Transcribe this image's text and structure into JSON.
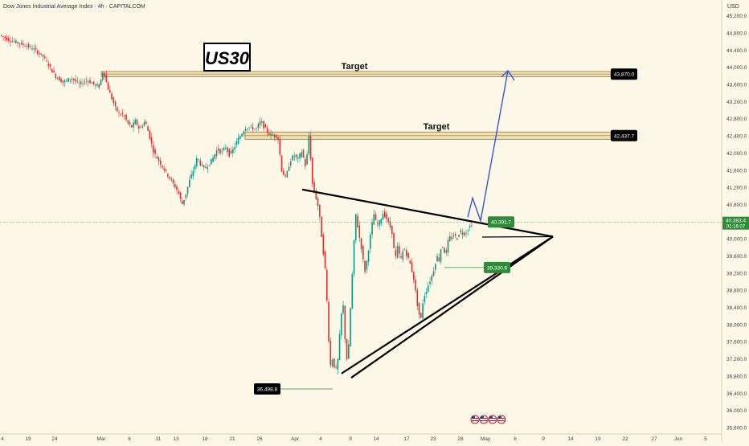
{
  "header": {
    "title": "Dow Jones Industrial Average Index · 4h · CAPITALCOM"
  },
  "currency": "USD",
  "badge": "US30",
  "colors": {
    "background": "#fdf7e7",
    "up": "#089981",
    "down": "#e0302b",
    "zone": "#f2e1b0",
    "projection": "#3355e6",
    "label_bg": "#000000",
    "current_price": "#2e8b3a"
  },
  "chart_data": {
    "type": "candlestick",
    "title": "Dow Jones Industrial Average Index · 4h · CAPITALCOM",
    "ylim": [
      35450,
      45380
    ],
    "y_ticks": [
      45200,
      44800,
      44400,
      44000,
      43600,
      43200,
      42800,
      42400,
      42000,
      41600,
      41200,
      40800,
      40400,
      40000,
      39600,
      39200,
      38800,
      38400,
      38000,
      37600,
      37200,
      36800,
      36400,
      36000,
      35600
    ],
    "y_tick_labels": [
      "45,200.0",
      "44,800.0",
      "44,400.0",
      "44,000.0",
      "43,600.0",
      "43,200.0",
      "42,800.0",
      "42,400.0",
      "42,000.0",
      "41,600.0",
      "41,200.0",
      "40,800.0",
      "40,400.0",
      "40,000.0",
      "39,600.0",
      "39,200.0",
      "38,800.0",
      "38,400.0",
      "38,000.0",
      "37,600.0",
      "37,200.0",
      "36,800.0",
      "36,400.0",
      "36,000.0",
      "35,600.0"
    ],
    "x_ticks": [
      "4",
      "19",
      "24",
      "Mar",
      "6",
      "11",
      "13",
      "18",
      "21",
      "26",
      "Apr",
      "4",
      "9",
      "14",
      "17",
      "23",
      "28",
      "May",
      "6",
      "9",
      "14",
      "19",
      "22",
      "27",
      "Jun",
      "5"
    ],
    "price_path": [
      [
        0,
        44760
      ],
      [
        6,
        44700
      ],
      [
        15,
        44620
      ],
      [
        25,
        44560
      ],
      [
        35,
        44500
      ],
      [
        45,
        44400
      ],
      [
        55,
        44250
      ],
      [
        62,
        44050
      ],
      [
        70,
        43800
      ],
      [
        80,
        43650
      ],
      [
        90,
        43750
      ],
      [
        100,
        43600
      ],
      [
        110,
        43700
      ],
      [
        118,
        43600
      ],
      [
        125,
        43550
      ],
      [
        130,
        43950
      ],
      [
        135,
        43550
      ],
      [
        140,
        43300
      ],
      [
        145,
        43050
      ],
      [
        150,
        42900
      ],
      [
        155,
        42900
      ],
      [
        160,
        42700
      ],
      [
        165,
        42600
      ],
      [
        170,
        42750
      ],
      [
        175,
        42550
      ],
      [
        182,
        42750
      ],
      [
        188,
        42350
      ],
      [
        193,
        42000
      ],
      [
        198,
        41850
      ],
      [
        203,
        41700
      ],
      [
        208,
        41550
      ],
      [
        213,
        41400
      ],
      [
        218,
        41250
      ],
      [
        223,
        41100
      ],
      [
        228,
        40800
      ],
      [
        232,
        41000
      ],
      [
        237,
        41350
      ],
      [
        242,
        41600
      ],
      [
        247,
        41900
      ],
      [
        252,
        41700
      ],
      [
        257,
        41650
      ],
      [
        262,
        41750
      ],
      [
        267,
        41900
      ],
      [
        272,
        42100
      ],
      [
        277,
        42000
      ],
      [
        282,
        42150
      ],
      [
        287,
        41950
      ],
      [
        292,
        42100
      ],
      [
        297,
        42300
      ],
      [
        302,
        42450
      ],
      [
        307,
        42600
      ],
      [
        313,
        42600
      ],
      [
        320,
        42550
      ],
      [
        326,
        42750
      ],
      [
        330,
        42600
      ],
      [
        336,
        42450
      ],
      [
        342,
        42400
      ],
      [
        347,
        42400
      ],
      [
        352,
        41600
      ],
      [
        357,
        41400
      ],
      [
        362,
        41800
      ],
      [
        367,
        41950
      ],
      [
        372,
        41850
      ],
      [
        377,
        42050
      ],
      [
        382,
        41650
      ],
      [
        386,
        42450
      ],
      [
        390,
        41300
      ],
      [
        394,
        41000
      ],
      [
        398,
        40700
      ],
      [
        403,
        39800
      ],
      [
        406,
        39300
      ],
      [
        409,
        38300
      ],
      [
        412,
        37000
      ],
      [
        415,
        37200
      ],
      [
        419,
        36900
      ],
      [
        422,
        37200
      ],
      [
        425,
        38000
      ],
      [
        428,
        38600
      ],
      [
        431,
        37600
      ],
      [
        434,
        37000
      ],
      [
        437,
        38200
      ],
      [
        441,
        39600
      ],
      [
        444,
        40600
      ],
      [
        448,
        40100
      ],
      [
        452,
        39700
      ],
      [
        455,
        39200
      ],
      [
        458,
        39500
      ],
      [
        461,
        39900
      ],
      [
        464,
        40300
      ],
      [
        467,
        40600
      ],
      [
        470,
        40300
      ],
      [
        474,
        40400
      ],
      [
        478,
        40600
      ],
      [
        482,
        40500
      ],
      [
        485,
        40350
      ],
      [
        489,
        40200
      ],
      [
        493,
        39500
      ],
      [
        496,
        39800
      ],
      [
        500,
        39500
      ],
      [
        504,
        39800
      ],
      [
        508,
        39600
      ],
      [
        512,
        39400
      ],
      [
        516,
        39100
      ],
      [
        519,
        38700
      ],
      [
        522,
        38300
      ],
      [
        525,
        38100
      ],
      [
        528,
        38600
      ],
      [
        532,
        38800
      ],
      [
        536,
        39000
      ],
      [
        540,
        39200
      ],
      [
        545,
        39600
      ],
      [
        548,
        39500
      ],
      [
        551,
        39900
      ],
      [
        554,
        39700
      ],
      [
        557,
        39700
      ],
      [
        560,
        40050
      ],
      [
        563,
        40000
      ],
      [
        566,
        40100
      ],
      [
        570,
        40000
      ],
      [
        574,
        40200
      ],
      [
        578,
        40100
      ],
      [
        583,
        40200
      ],
      [
        588,
        40350
      ]
    ],
    "horizontal_zones": [
      {
        "label": "Target",
        "y_top": 43900,
        "y_bottom": 43780,
        "price_label": "43,870.0"
      },
      {
        "label": "Target",
        "y_top": 42490,
        "y_bottom": 42320,
        "price_label": "42,437.7"
      }
    ],
    "annotations": [
      {
        "text": "40,391.7",
        "price": 40391.7,
        "style": "green"
      },
      {
        "text": "39,330.6",
        "price": 39330.6,
        "style": "green"
      },
      {
        "text": "36,498.8",
        "price": 36498.8,
        "style": "black"
      }
    ],
    "current_price": {
      "value": "40,383.4",
      "countdown": "01:16:07",
      "price": 40383.4
    },
    "triangle": {
      "upper": [
        [
          376,
          41150
        ],
        [
          688,
          40050
        ]
      ],
      "lower": [
        [
          425,
          36860
        ],
        [
          688,
          40050
        ]
      ],
      "lower_inner": [
        [
          437,
          36760
        ],
        [
          688,
          40050
        ]
      ]
    },
    "projection_path": [
      [
        582,
        40500
      ],
      [
        588,
        40950
      ],
      [
        598,
        40420
      ],
      [
        632,
        43920
      ]
    ],
    "footer_icons": [
      "us-flag-icon",
      "us-flag-icon",
      "us-flag-icon",
      "us-flag-icon"
    ]
  }
}
